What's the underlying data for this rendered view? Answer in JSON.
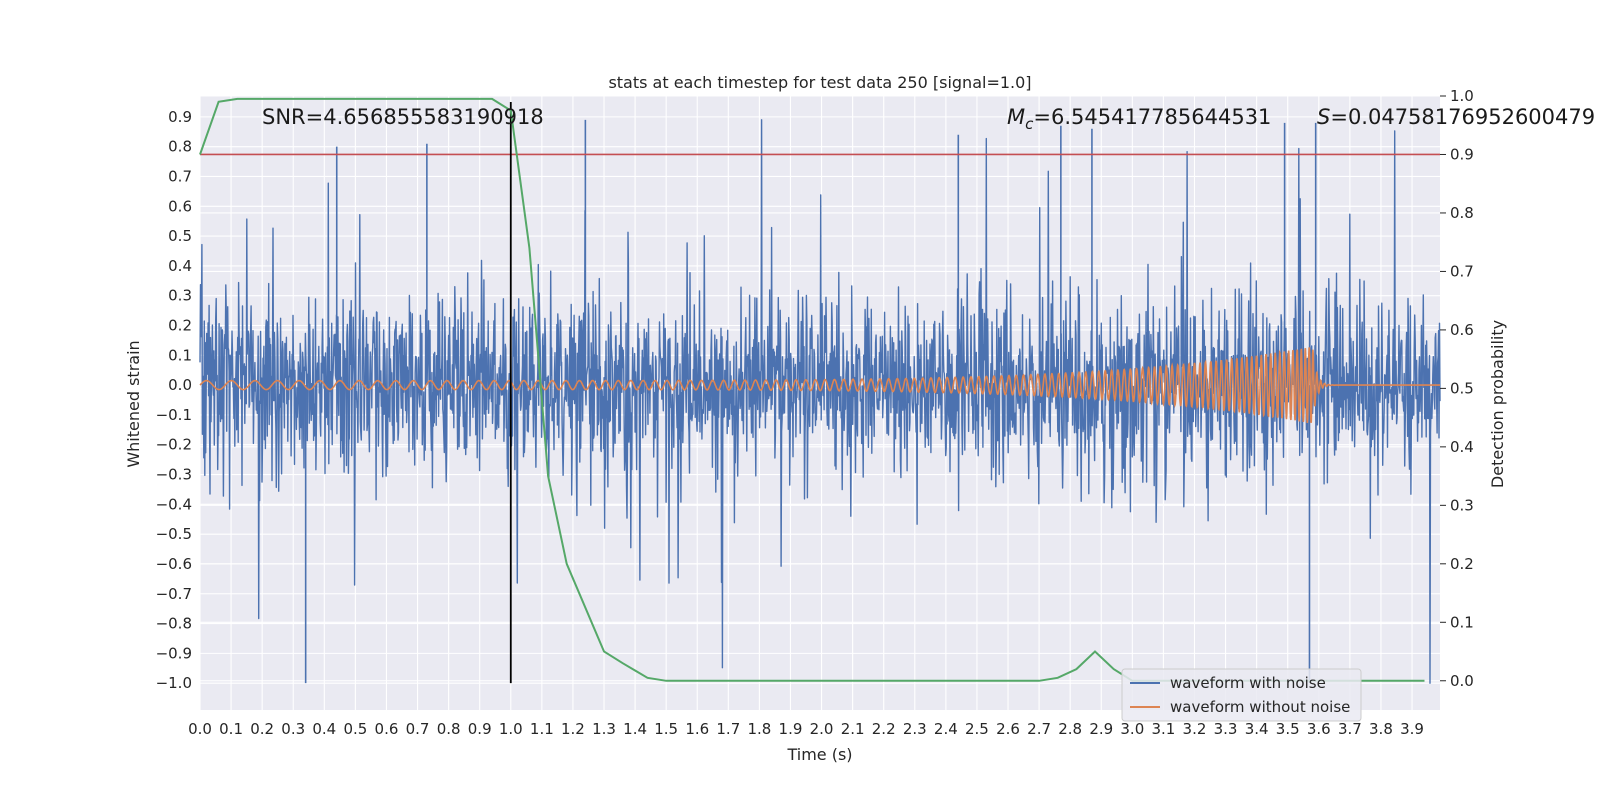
{
  "colors": {
    "background": "#ffffff",
    "axes_face": "#eaeaf2",
    "grid": "#ffffff",
    "noisy": "#4c72b0",
    "clean": "#dd8452",
    "probability": "#55a868",
    "threshold": "#c44e52",
    "marker": "#000000"
  },
  "chart_data": {
    "type": "line",
    "title": "stats at each timestep for test data 250 [signal=1.0]",
    "xlabel": "Time (s)",
    "ylabel_left": "Whitened strain",
    "ylabel_right": "Detection probability",
    "xlim": [
      0,
      3.99
    ],
    "ylim_left": [
      -1.09,
      0.97
    ],
    "ylim_right": [
      -0.05,
      1.0
    ],
    "x_ticks": [
      "0.0",
      "0.1",
      "0.2",
      "0.3",
      "0.4",
      "0.5",
      "0.6",
      "0.7",
      "0.8",
      "0.9",
      "1.0",
      "1.1",
      "1.2",
      "1.3",
      "1.4",
      "1.5",
      "1.6",
      "1.7",
      "1.8",
      "1.9",
      "2.0",
      "2.1",
      "2.2",
      "2.3",
      "2.4",
      "2.5",
      "2.6",
      "2.7",
      "2.8",
      "2.9",
      "3.0",
      "3.1",
      "3.2",
      "3.3",
      "3.4",
      "3.5",
      "3.6",
      "3.7",
      "3.8",
      "3.9"
    ],
    "y_ticks_left": [
      "0.9",
      "0.8",
      "0.7",
      "0.6",
      "0.5",
      "0.4",
      "0.3",
      "0.2",
      "0.1",
      "0.0",
      "−0.1",
      "−0.2",
      "−0.3",
      "−0.4",
      "−0.5",
      "−0.6",
      "−0.7",
      "−0.8",
      "−0.9",
      "−1.0"
    ],
    "y_ticks_right": [
      "1.0",
      "0.9",
      "0.8",
      "0.7",
      "0.6",
      "0.5",
      "0.4",
      "0.3",
      "0.2",
      "0.1",
      "0.0"
    ],
    "annotations": {
      "snr": "SNR=4.656855583190918",
      "mc_symbol": "M",
      "mc_sub": "c",
      "mc_value": "=6.545417785644531",
      "s_symbol": "S",
      "s_value": "=0.04758176952600479"
    },
    "legend": [
      "waveform with noise",
      "waveform without noise"
    ],
    "legend_position": "lower-right",
    "series": [
      {
        "name": "waveform with noise",
        "axis": "left",
        "description_of_values": "dense random noise, roughly within -1.0 to 0.89",
        "noise_envelope": [
          -1.0,
          0.89
        ],
        "peaks": [
          {
            "x": 0.34,
            "y": -1.0
          },
          {
            "x": 0.44,
            "y": 0.8
          },
          {
            "x": 0.73,
            "y": 0.81
          },
          {
            "x": 1.24,
            "y": 0.89
          },
          {
            "x": 2.44,
            "y": 0.84
          },
          {
            "x": 2.77,
            "y": 0.87
          },
          {
            "x": 2.87,
            "y": 0.86
          },
          {
            "x": 3.49,
            "y": 0.88
          },
          {
            "x": 3.59,
            "y": 0.88
          },
          {
            "x": 3.57,
            "y": -1.0
          }
        ]
      },
      {
        "name": "waveform without noise",
        "axis": "left",
        "type": "chirp",
        "amplitude_start": 0.015,
        "amplitude_peak": 0.13,
        "freq_start_hz": 12,
        "freq_end_hz": 90,
        "merger_time": 3.58
      },
      {
        "axis": "right",
        "x": [
          0.0,
          0.06,
          0.12,
          0.3,
          0.6,
          0.94,
          1.0,
          1.06,
          1.12,
          1.18,
          1.3,
          1.36,
          1.44,
          1.5,
          1.8,
          2.2,
          2.6,
          2.7,
          2.76,
          2.82,
          2.88,
          2.94,
          3.0,
          3.3,
          3.6,
          3.94
        ],
        "values": [
          0.9,
          0.99,
          0.995,
          0.995,
          0.995,
          0.995,
          0.975,
          0.74,
          0.35,
          0.2,
          0.05,
          0.03,
          0.005,
          0.0,
          0.0,
          0.0,
          0.0,
          0.0,
          0.005,
          0.02,
          0.05,
          0.02,
          0.0,
          0.0,
          0.0,
          0.0
        ]
      }
    ],
    "threshold_right": 0.9,
    "vertical_marker_x": 1.0,
    "vertical_marker_ymax": 0.95
  }
}
